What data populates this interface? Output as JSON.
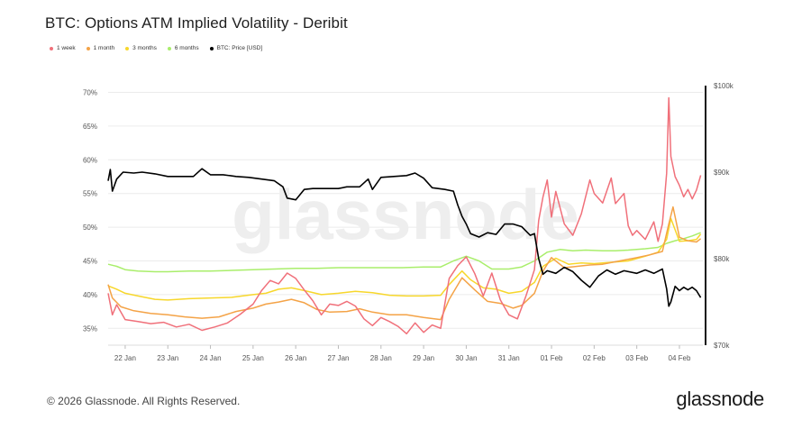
{
  "title": "BTC: Options ATM Implied Volatility - Deribit",
  "footer": "© 2026 Glassnode. All Rights Reserved.",
  "brand": "glassnode",
  "watermark": "glassnode",
  "legend": [
    {
      "label": "1 week",
      "color": "#f0707a"
    },
    {
      "label": "1 month",
      "color": "#f4a347"
    },
    {
      "label": "3 months",
      "color": "#f7d72c"
    },
    {
      "label": "6 months",
      "color": "#a9ee6b"
    },
    {
      "label": "BTC: Price [USD]",
      "color": "#000000"
    }
  ],
  "chart_data": {
    "type": "line",
    "title": "BTC: Options ATM Implied Volatility - Deribit",
    "x_range": [
      21.6,
      35.55
    ],
    "x_ticks": [
      {
        "label": "22 Jan",
        "x": 22
      },
      {
        "label": "23 Jan",
        "x": 23
      },
      {
        "label": "24 Jan",
        "x": 24
      },
      {
        "label": "25 Jan",
        "x": 25
      },
      {
        "label": "26 Jan",
        "x": 26
      },
      {
        "label": "27 Jan",
        "x": 27
      },
      {
        "label": "28 Jan",
        "x": 28
      },
      {
        "label": "29 Jan",
        "x": 29
      },
      {
        "label": "30 Jan",
        "x": 30
      },
      {
        "label": "31 Jan",
        "x": 31
      },
      {
        "label": "01 Feb",
        "x": 32
      },
      {
        "label": "02 Feb",
        "x": 33
      },
      {
        "label": "03 Feb",
        "x": 34
      },
      {
        "label": "04 Feb",
        "x": 35
      }
    ],
    "y_left": {
      "range": [
        32.5,
        71
      ],
      "ticks": [
        35,
        40,
        45,
        50,
        55,
        60,
        65,
        70
      ],
      "suffix": "%"
    },
    "y_right": {
      "range": [
        70000,
        100000
      ],
      "ticks": [
        70000,
        80000,
        90000,
        100000
      ],
      "tick_labels": [
        "$70k",
        "$80k",
        "$90k",
        "$100k"
      ]
    },
    "series": [
      {
        "name": "6 months",
        "color": "#a9ee6b",
        "axis": "left",
        "points": [
          [
            21.6,
            44.5
          ],
          [
            21.8,
            44.2
          ],
          [
            22.0,
            43.7
          ],
          [
            22.3,
            43.5
          ],
          [
            22.7,
            43.4
          ],
          [
            23.0,
            43.4
          ],
          [
            23.5,
            43.5
          ],
          [
            24.0,
            43.5
          ],
          [
            24.5,
            43.6
          ],
          [
            25.0,
            43.7
          ],
          [
            25.5,
            43.8
          ],
          [
            26.0,
            43.9
          ],
          [
            26.5,
            43.9
          ],
          [
            27.0,
            44.0
          ],
          [
            27.5,
            44.0
          ],
          [
            28.0,
            44.0
          ],
          [
            28.5,
            44.0
          ],
          [
            29.0,
            44.1
          ],
          [
            29.4,
            44.1
          ],
          [
            29.7,
            45.0
          ],
          [
            30.0,
            45.7
          ],
          [
            30.3,
            45.0
          ],
          [
            30.6,
            43.8
          ],
          [
            31.0,
            43.8
          ],
          [
            31.3,
            44.1
          ],
          [
            31.6,
            45.0
          ],
          [
            31.9,
            46.3
          ],
          [
            32.2,
            46.7
          ],
          [
            32.5,
            46.5
          ],
          [
            32.8,
            46.6
          ],
          [
            33.2,
            46.5
          ],
          [
            33.5,
            46.5
          ],
          [
            33.8,
            46.6
          ],
          [
            34.2,
            46.8
          ],
          [
            34.5,
            47.0
          ],
          [
            34.7,
            47.6
          ],
          [
            34.9,
            48.0
          ],
          [
            35.1,
            48.3
          ],
          [
            35.3,
            48.7
          ],
          [
            35.5,
            49.2
          ]
        ]
      },
      {
        "name": "3 months",
        "color": "#f7d72c",
        "axis": "left",
        "points": [
          [
            21.6,
            41.3
          ],
          [
            21.8,
            40.8
          ],
          [
            22.0,
            40.2
          ],
          [
            22.3,
            39.8
          ],
          [
            22.7,
            39.3
          ],
          [
            23.0,
            39.2
          ],
          [
            23.5,
            39.4
          ],
          [
            24.0,
            39.5
          ],
          [
            24.5,
            39.6
          ],
          [
            25.0,
            40.0
          ],
          [
            25.3,
            40.2
          ],
          [
            25.6,
            40.8
          ],
          [
            25.9,
            41.0
          ],
          [
            26.2,
            40.6
          ],
          [
            26.6,
            40.0
          ],
          [
            27.0,
            40.2
          ],
          [
            27.4,
            40.5
          ],
          [
            27.8,
            40.3
          ],
          [
            28.2,
            39.9
          ],
          [
            28.6,
            39.8
          ],
          [
            29.0,
            39.8
          ],
          [
            29.4,
            39.9
          ],
          [
            29.6,
            41.5
          ],
          [
            29.9,
            43.5
          ],
          [
            30.1,
            42.2
          ],
          [
            30.4,
            41.0
          ],
          [
            30.7,
            40.8
          ],
          [
            31.0,
            40.2
          ],
          [
            31.3,
            40.5
          ],
          [
            31.6,
            41.8
          ],
          [
            31.8,
            44.2
          ],
          [
            32.1,
            45.4
          ],
          [
            32.4,
            44.5
          ],
          [
            32.7,
            44.7
          ],
          [
            33.0,
            44.6
          ],
          [
            33.4,
            44.8
          ],
          [
            33.8,
            45.0
          ],
          [
            34.2,
            45.7
          ],
          [
            34.5,
            46.3
          ],
          [
            34.7,
            48.2
          ],
          [
            34.8,
            51.3
          ],
          [
            35.0,
            47.9
          ],
          [
            35.2,
            48.0
          ],
          [
            35.4,
            48.2
          ],
          [
            35.5,
            49.0
          ]
        ]
      },
      {
        "name": "1 month",
        "color": "#f4a347",
        "axis": "left",
        "points": [
          [
            21.6,
            41.5
          ],
          [
            21.7,
            39.5
          ],
          [
            21.9,
            38.2
          ],
          [
            22.2,
            37.6
          ],
          [
            22.6,
            37.2
          ],
          [
            23.0,
            37.0
          ],
          [
            23.4,
            36.7
          ],
          [
            23.8,
            36.5
          ],
          [
            24.2,
            36.7
          ],
          [
            24.6,
            37.5
          ],
          [
            25.0,
            38.0
          ],
          [
            25.3,
            38.6
          ],
          [
            25.6,
            38.9
          ],
          [
            25.9,
            39.3
          ],
          [
            26.2,
            38.8
          ],
          [
            26.5,
            37.8
          ],
          [
            26.8,
            37.4
          ],
          [
            27.2,
            37.5
          ],
          [
            27.5,
            37.9
          ],
          [
            27.8,
            37.4
          ],
          [
            28.2,
            37.0
          ],
          [
            28.6,
            37.0
          ],
          [
            29.0,
            36.6
          ],
          [
            29.4,
            36.3
          ],
          [
            29.6,
            39.3
          ],
          [
            29.9,
            42.5
          ],
          [
            30.2,
            40.7
          ],
          [
            30.5,
            39.0
          ],
          [
            30.8,
            38.7
          ],
          [
            31.1,
            38.0
          ],
          [
            31.3,
            38.4
          ],
          [
            31.6,
            40.2
          ],
          [
            31.8,
            43.5
          ],
          [
            32.0,
            45.5
          ],
          [
            32.3,
            44.0
          ],
          [
            32.6,
            44.2
          ],
          [
            32.9,
            44.4
          ],
          [
            33.2,
            44.5
          ],
          [
            33.6,
            45.0
          ],
          [
            34.0,
            45.5
          ],
          [
            34.3,
            45.9
          ],
          [
            34.6,
            46.4
          ],
          [
            34.75,
            50.5
          ],
          [
            34.85,
            53.0
          ],
          [
            35.0,
            48.5
          ],
          [
            35.2,
            48.0
          ],
          [
            35.4,
            47.8
          ],
          [
            35.5,
            48.3
          ]
        ]
      },
      {
        "name": "1 week",
        "color": "#f0707a",
        "axis": "left",
        "points": [
          [
            21.6,
            40.2
          ],
          [
            21.7,
            37.0
          ],
          [
            21.8,
            38.5
          ],
          [
            22.0,
            36.3
          ],
          [
            22.3,
            36.0
          ],
          [
            22.6,
            35.7
          ],
          [
            22.9,
            35.9
          ],
          [
            23.2,
            35.2
          ],
          [
            23.5,
            35.6
          ],
          [
            23.8,
            34.7
          ],
          [
            24.1,
            35.2
          ],
          [
            24.4,
            35.8
          ],
          [
            24.7,
            37.1
          ],
          [
            25.0,
            38.6
          ],
          [
            25.2,
            40.6
          ],
          [
            25.4,
            42.1
          ],
          [
            25.6,
            41.6
          ],
          [
            25.8,
            43.2
          ],
          [
            26.0,
            42.4
          ],
          [
            26.2,
            40.7
          ],
          [
            26.4,
            39.1
          ],
          [
            26.6,
            37.0
          ],
          [
            26.8,
            38.6
          ],
          [
            27.0,
            38.4
          ],
          [
            27.2,
            39.0
          ],
          [
            27.4,
            38.3
          ],
          [
            27.6,
            36.4
          ],
          [
            27.8,
            35.4
          ],
          [
            28.0,
            36.6
          ],
          [
            28.2,
            36.0
          ],
          [
            28.4,
            35.3
          ],
          [
            28.6,
            34.2
          ],
          [
            28.8,
            35.8
          ],
          [
            29.0,
            34.4
          ],
          [
            29.2,
            35.5
          ],
          [
            29.4,
            35.0
          ],
          [
            29.6,
            42.4
          ],
          [
            29.8,
            44.3
          ],
          [
            30.0,
            45.6
          ],
          [
            30.2,
            43.1
          ],
          [
            30.4,
            39.8
          ],
          [
            30.6,
            43.2
          ],
          [
            30.8,
            39.2
          ],
          [
            31.0,
            37.0
          ],
          [
            31.2,
            36.4
          ],
          [
            31.4,
            39.8
          ],
          [
            31.6,
            43.7
          ],
          [
            31.7,
            51.0
          ],
          [
            31.8,
            54.5
          ],
          [
            31.9,
            57.0
          ],
          [
            32.0,
            51.5
          ],
          [
            32.1,
            55.3
          ],
          [
            32.3,
            50.5
          ],
          [
            32.5,
            48.8
          ],
          [
            32.7,
            52.0
          ],
          [
            32.9,
            57.0
          ],
          [
            33.0,
            55.0
          ],
          [
            33.2,
            53.6
          ],
          [
            33.4,
            57.3
          ],
          [
            33.5,
            53.5
          ],
          [
            33.7,
            55.0
          ],
          [
            33.8,
            50.2
          ],
          [
            33.9,
            48.8
          ],
          [
            34.0,
            49.5
          ],
          [
            34.2,
            48.2
          ],
          [
            34.4,
            50.8
          ],
          [
            34.5,
            47.9
          ],
          [
            34.6,
            50.5
          ],
          [
            34.7,
            58.0
          ],
          [
            34.75,
            69.2
          ],
          [
            34.8,
            60.5
          ],
          [
            34.9,
            57.5
          ],
          [
            35.0,
            56.2
          ],
          [
            35.1,
            54.5
          ],
          [
            35.2,
            55.6
          ],
          [
            35.3,
            54.2
          ],
          [
            35.4,
            55.5
          ],
          [
            35.5,
            57.7
          ]
        ]
      },
      {
        "name": "BTC: Price [USD]",
        "color": "#000000",
        "axis": "right",
        "points": [
          [
            21.6,
            89000
          ],
          [
            21.65,
            90300
          ],
          [
            21.7,
            87800
          ],
          [
            21.8,
            89200
          ],
          [
            21.95,
            90000
          ],
          [
            22.2,
            89900
          ],
          [
            22.4,
            90000
          ],
          [
            22.7,
            89800
          ],
          [
            23.0,
            89500
          ],
          [
            23.3,
            89500
          ],
          [
            23.6,
            89500
          ],
          [
            23.8,
            90400
          ],
          [
            24.0,
            89700
          ],
          [
            24.3,
            89700
          ],
          [
            24.6,
            89500
          ],
          [
            24.9,
            89400
          ],
          [
            25.2,
            89200
          ],
          [
            25.5,
            89000
          ],
          [
            25.7,
            88300
          ],
          [
            25.8,
            87000
          ],
          [
            26.0,
            86800
          ],
          [
            26.2,
            88000
          ],
          [
            26.4,
            88100
          ],
          [
            26.7,
            88100
          ],
          [
            27.0,
            88100
          ],
          [
            27.2,
            88300
          ],
          [
            27.5,
            88300
          ],
          [
            27.7,
            89200
          ],
          [
            27.8,
            88000
          ],
          [
            28.0,
            89400
          ],
          [
            28.3,
            89500
          ],
          [
            28.6,
            89600
          ],
          [
            28.8,
            89900
          ],
          [
            29.0,
            89300
          ],
          [
            29.2,
            88200
          ],
          [
            29.5,
            88000
          ],
          [
            29.7,
            87800
          ],
          [
            29.8,
            86200
          ],
          [
            29.9,
            84900
          ],
          [
            30.0,
            84000
          ],
          [
            30.1,
            82900
          ],
          [
            30.3,
            82500
          ],
          [
            30.5,
            83000
          ],
          [
            30.7,
            82800
          ],
          [
            30.9,
            84000
          ],
          [
            31.1,
            84000
          ],
          [
            31.3,
            83700
          ],
          [
            31.5,
            82700
          ],
          [
            31.6,
            82900
          ],
          [
            31.7,
            80000
          ],
          [
            31.8,
            78200
          ],
          [
            31.9,
            78600
          ],
          [
            32.1,
            78300
          ],
          [
            32.3,
            79000
          ],
          [
            32.5,
            78500
          ],
          [
            32.7,
            77500
          ],
          [
            32.9,
            76700
          ],
          [
            33.1,
            78000
          ],
          [
            33.3,
            78700
          ],
          [
            33.5,
            78200
          ],
          [
            33.7,
            78600
          ],
          [
            34.0,
            78300
          ],
          [
            34.2,
            78700
          ],
          [
            34.4,
            78300
          ],
          [
            34.6,
            78800
          ],
          [
            34.7,
            76500
          ],
          [
            34.75,
            74500
          ],
          [
            34.8,
            75000
          ],
          [
            34.9,
            76800
          ],
          [
            35.0,
            76300
          ],
          [
            35.1,
            76700
          ],
          [
            35.2,
            76400
          ],
          [
            35.3,
            76700
          ],
          [
            35.4,
            76300
          ],
          [
            35.5,
            75500
          ]
        ]
      }
    ]
  }
}
